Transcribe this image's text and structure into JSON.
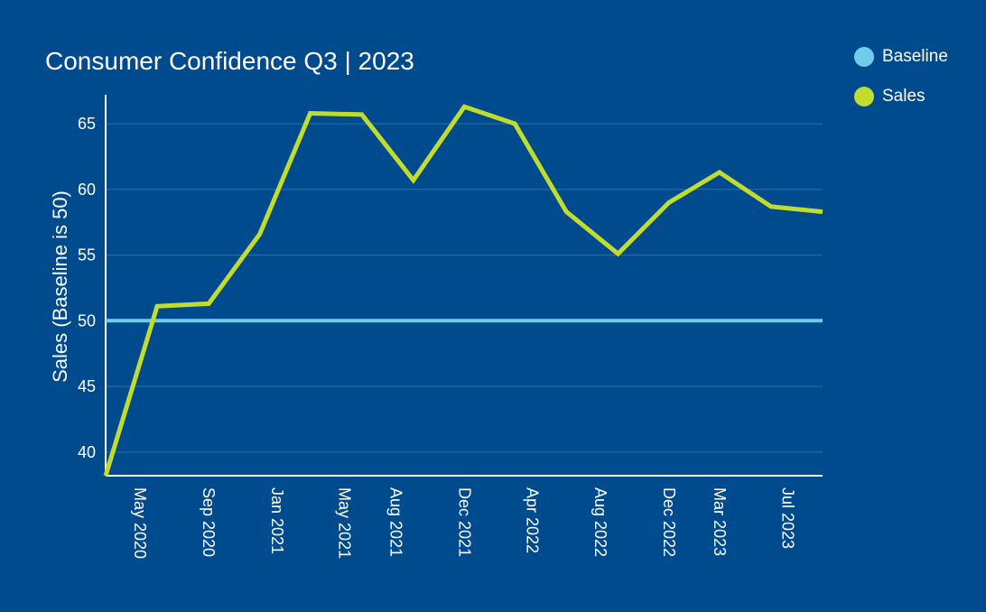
{
  "chart_data": {
    "type": "line",
    "title": "Consumer Confidence Q3 | 2023",
    "ylabel": "Sales (Baseline is 50)",
    "xlabel": "",
    "x_tick_labels": [
      "May 2020",
      "Sep 2020",
      "Jan 2021",
      "May 2021",
      "Aug 2021",
      "Dec 2021",
      "Apr 2022",
      "Aug 2022",
      "Dec 2022",
      "Mar 2023",
      "Jul 2023"
    ],
    "y_tick_labels": [
      "40",
      "45",
      "50",
      "55",
      "60",
      "65"
    ],
    "ylim": [
      38.2,
      67.0
    ],
    "grid": "horizontal",
    "legend_position": "top-right",
    "series": [
      {
        "name": "Baseline",
        "color": "#6fcdeb",
        "points": [
          {
            "x": "2020-03",
            "y": 50
          },
          {
            "x": "2023-09",
            "y": 50
          }
        ]
      },
      {
        "name": "Sales",
        "color": "#c2dc2d",
        "points": [
          {
            "x": "2020-03",
            "y": 38.2
          },
          {
            "x": "2020-06",
            "y": 51.1
          },
          {
            "x": "2020-09",
            "y": 51.3
          },
          {
            "x": "2020-12",
            "y": 56.6
          },
          {
            "x": "2021-03",
            "y": 65.8
          },
          {
            "x": "2021-06",
            "y": 65.7
          },
          {
            "x": "2021-09",
            "y": 60.7
          },
          {
            "x": "2021-12",
            "y": 66.3
          },
          {
            "x": "2022-03",
            "y": 65.0
          },
          {
            "x": "2022-06",
            "y": 58.3
          },
          {
            "x": "2022-09",
            "y": 55.1
          },
          {
            "x": "2022-12",
            "y": 59.0
          },
          {
            "x": "2023-03",
            "y": 61.3
          },
          {
            "x": "2023-06",
            "y": 58.7
          },
          {
            "x": "2023-09",
            "y": 58.3
          }
        ]
      }
    ]
  },
  "colors": {
    "background": "#004b8d",
    "gridline": "#2e6fa8",
    "axis": "#ffffff",
    "text": "#ffffff"
  }
}
